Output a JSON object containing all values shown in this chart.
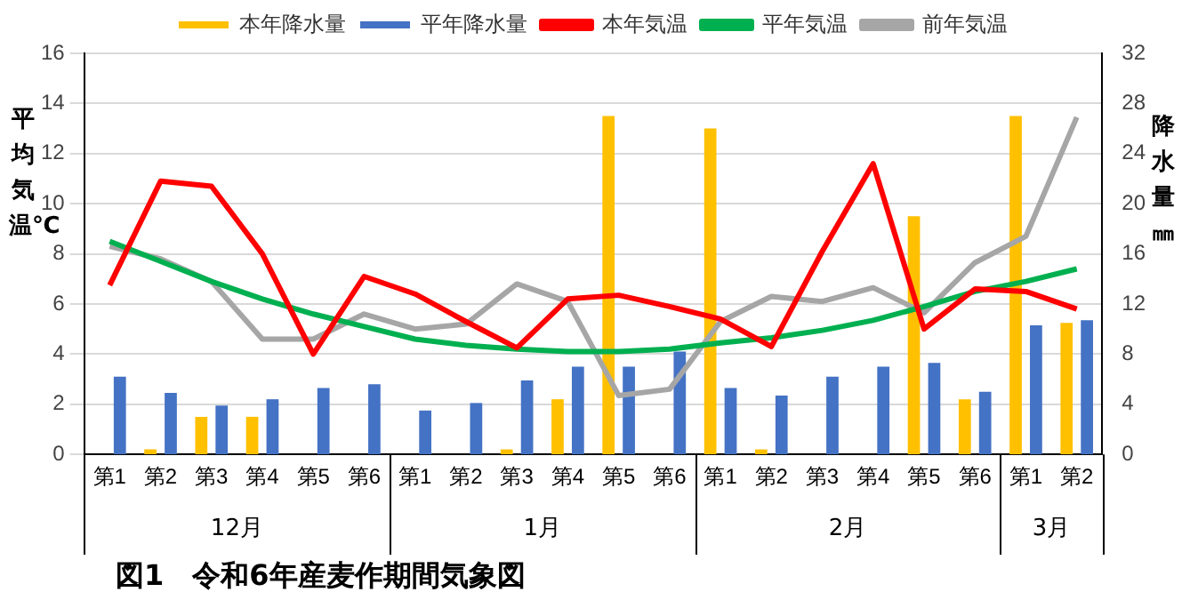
{
  "chart_data": {
    "type": "bar",
    "title": "図1　令和6年産麦作期間気象図",
    "ylabel": "平均気温℃",
    "y2label": "降水量㎜",
    "categories": [
      "第1",
      "第2",
      "第3",
      "第4",
      "第5",
      "第6",
      "第1",
      "第2",
      "第3",
      "第4",
      "第5",
      "第6",
      "第1",
      "第2",
      "第3",
      "第4",
      "第5",
      "第6",
      "第1",
      "第2"
    ],
    "annotations": [
      "12月",
      "1月",
      "2月",
      "3月"
    ],
    "series": [
      {
        "name": "本年降水量",
        "axis": "y2",
        "color": "#ffc000",
        "values": [
          0,
          0.4,
          3,
          3,
          0,
          0,
          0,
          0,
          0.4,
          4.4,
          27,
          0,
          26,
          0.4,
          0,
          0,
          19,
          4.4,
          27,
          10.5
        ]
      },
      {
        "name": "平年降水量",
        "axis": "y2",
        "color": "#4472c4",
        "values": [
          6.2,
          4.9,
          3.9,
          4.4,
          5.3,
          5.6,
          3.5,
          4.1,
          5.9,
          7.0,
          7.0,
          8.2,
          5.3,
          4.7,
          6.2,
          7.0,
          7.3,
          5.0,
          10.3,
          10.7
        ]
      },
      {
        "name": "本年気温",
        "type": "line",
        "color": "#ff0000",
        "values": [
          6.75,
          10.9,
          10.7,
          8.0,
          4.0,
          7.1,
          6.4,
          5.3,
          4.25,
          6.2,
          6.35,
          5.9,
          5.4,
          4.3,
          8.1,
          11.6,
          5.0,
          6.6,
          6.5,
          5.8
        ]
      },
      {
        "name": "平年気温",
        "type": "line",
        "color": "#00b050",
        "values": [
          8.5,
          7.7,
          6.9,
          6.2,
          5.6,
          5.1,
          4.6,
          4.35,
          4.2,
          4.1,
          4.1,
          4.2,
          4.45,
          4.65,
          4.95,
          5.35,
          5.9,
          6.5,
          6.9,
          7.4
        ]
      },
      {
        "name": "前年気温",
        "type": "line",
        "color": "#a6a6a6",
        "values": [
          8.3,
          7.8,
          6.9,
          4.6,
          4.6,
          5.6,
          5.0,
          5.2,
          6.8,
          6.1,
          2.35,
          2.6,
          5.3,
          6.3,
          6.1,
          6.65,
          5.65,
          7.65,
          8.7,
          13.45
        ]
      }
    ],
    "ylim": [
      0,
      16
    ],
    "yticks": [
      0,
      2,
      4,
      6,
      8,
      10,
      12,
      14,
      16
    ],
    "y2lim": [
      0,
      32
    ],
    "y2ticks": [
      0,
      4,
      8,
      12,
      16,
      20,
      24,
      28,
      32
    ],
    "grid": "y",
    "legend": "top",
    "marker": "none",
    "line_style": "solid"
  }
}
